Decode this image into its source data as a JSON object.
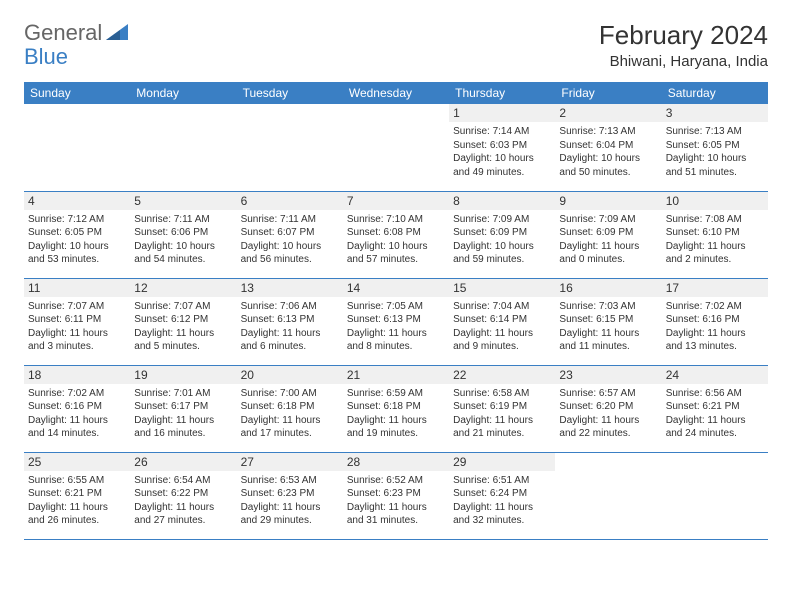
{
  "logo": {
    "part1": "General",
    "part2": "Blue"
  },
  "title": "February 2024",
  "location": "Bhiwani, Haryana, India",
  "colors": {
    "header_bg": "#3a7fc4",
    "header_text": "#ffffff",
    "daynum_bg": "#f0f0f0",
    "text": "#333333",
    "rule": "#3a7fc4"
  },
  "day_headers": [
    "Sunday",
    "Monday",
    "Tuesday",
    "Wednesday",
    "Thursday",
    "Friday",
    "Saturday"
  ],
  "weeks": [
    [
      null,
      null,
      null,
      null,
      {
        "n": "1",
        "sr": "7:14 AM",
        "ss": "6:03 PM",
        "dl": "10 hours and 49 minutes."
      },
      {
        "n": "2",
        "sr": "7:13 AM",
        "ss": "6:04 PM",
        "dl": "10 hours and 50 minutes."
      },
      {
        "n": "3",
        "sr": "7:13 AM",
        "ss": "6:05 PM",
        "dl": "10 hours and 51 minutes."
      }
    ],
    [
      {
        "n": "4",
        "sr": "7:12 AM",
        "ss": "6:05 PM",
        "dl": "10 hours and 53 minutes."
      },
      {
        "n": "5",
        "sr": "7:11 AM",
        "ss": "6:06 PM",
        "dl": "10 hours and 54 minutes."
      },
      {
        "n": "6",
        "sr": "7:11 AM",
        "ss": "6:07 PM",
        "dl": "10 hours and 56 minutes."
      },
      {
        "n": "7",
        "sr": "7:10 AM",
        "ss": "6:08 PM",
        "dl": "10 hours and 57 minutes."
      },
      {
        "n": "8",
        "sr": "7:09 AM",
        "ss": "6:09 PM",
        "dl": "10 hours and 59 minutes."
      },
      {
        "n": "9",
        "sr": "7:09 AM",
        "ss": "6:09 PM",
        "dl": "11 hours and 0 minutes."
      },
      {
        "n": "10",
        "sr": "7:08 AM",
        "ss": "6:10 PM",
        "dl": "11 hours and 2 minutes."
      }
    ],
    [
      {
        "n": "11",
        "sr": "7:07 AM",
        "ss": "6:11 PM",
        "dl": "11 hours and 3 minutes."
      },
      {
        "n": "12",
        "sr": "7:07 AM",
        "ss": "6:12 PM",
        "dl": "11 hours and 5 minutes."
      },
      {
        "n": "13",
        "sr": "7:06 AM",
        "ss": "6:13 PM",
        "dl": "11 hours and 6 minutes."
      },
      {
        "n": "14",
        "sr": "7:05 AM",
        "ss": "6:13 PM",
        "dl": "11 hours and 8 minutes."
      },
      {
        "n": "15",
        "sr": "7:04 AM",
        "ss": "6:14 PM",
        "dl": "11 hours and 9 minutes."
      },
      {
        "n": "16",
        "sr": "7:03 AM",
        "ss": "6:15 PM",
        "dl": "11 hours and 11 minutes."
      },
      {
        "n": "17",
        "sr": "7:02 AM",
        "ss": "6:16 PM",
        "dl": "11 hours and 13 minutes."
      }
    ],
    [
      {
        "n": "18",
        "sr": "7:02 AM",
        "ss": "6:16 PM",
        "dl": "11 hours and 14 minutes."
      },
      {
        "n": "19",
        "sr": "7:01 AM",
        "ss": "6:17 PM",
        "dl": "11 hours and 16 minutes."
      },
      {
        "n": "20",
        "sr": "7:00 AM",
        "ss": "6:18 PM",
        "dl": "11 hours and 17 minutes."
      },
      {
        "n": "21",
        "sr": "6:59 AM",
        "ss": "6:18 PM",
        "dl": "11 hours and 19 minutes."
      },
      {
        "n": "22",
        "sr": "6:58 AM",
        "ss": "6:19 PM",
        "dl": "11 hours and 21 minutes."
      },
      {
        "n": "23",
        "sr": "6:57 AM",
        "ss": "6:20 PM",
        "dl": "11 hours and 22 minutes."
      },
      {
        "n": "24",
        "sr": "6:56 AM",
        "ss": "6:21 PM",
        "dl": "11 hours and 24 minutes."
      }
    ],
    [
      {
        "n": "25",
        "sr": "6:55 AM",
        "ss": "6:21 PM",
        "dl": "11 hours and 26 minutes."
      },
      {
        "n": "26",
        "sr": "6:54 AM",
        "ss": "6:22 PM",
        "dl": "11 hours and 27 minutes."
      },
      {
        "n": "27",
        "sr": "6:53 AM",
        "ss": "6:23 PM",
        "dl": "11 hours and 29 minutes."
      },
      {
        "n": "28",
        "sr": "6:52 AM",
        "ss": "6:23 PM",
        "dl": "11 hours and 31 minutes."
      },
      {
        "n": "29",
        "sr": "6:51 AM",
        "ss": "6:24 PM",
        "dl": "11 hours and 32 minutes."
      },
      null,
      null
    ]
  ],
  "labels": {
    "sunrise": "Sunrise: ",
    "sunset": "Sunset: ",
    "daylight": "Daylight: "
  }
}
